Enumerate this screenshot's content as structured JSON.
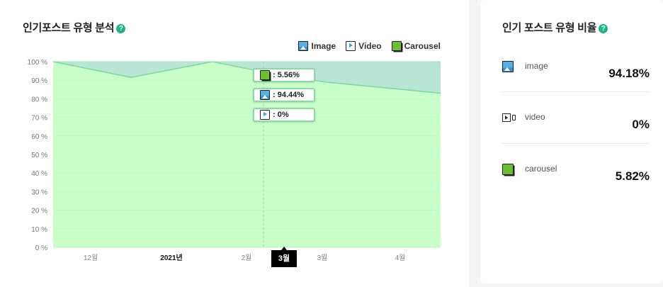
{
  "left_panel": {
    "title": "인기포스트 유형 분석",
    "help_icon": "?",
    "legend": [
      {
        "label": "Image",
        "icon": "image-icon"
      },
      {
        "label": "Video",
        "icon": "video-icon"
      },
      {
        "label": "Carousel",
        "icon": "carousel-icon"
      }
    ],
    "tooltip": [
      {
        "icon": "carousel-icon",
        "text": ": 5.56%"
      },
      {
        "icon": "image-icon",
        "text": ": 94.44%"
      },
      {
        "icon": "video-icon",
        "text": ": 0%"
      }
    ],
    "cursor_label": "3월"
  },
  "chart_data": {
    "type": "area",
    "stacked": true,
    "x": [
      "12월",
      "2021년",
      "2월",
      "3월",
      "3월",
      "4월"
    ],
    "x_ticks": [
      "12월",
      "2021년",
      "2월",
      "3월",
      "4월"
    ],
    "y_ticks": [
      "100 %",
      "90 %",
      "80 %",
      "70 %",
      "60 %",
      "50 %",
      "40 %",
      "30 %",
      "20 %",
      "10 %",
      "0 %"
    ],
    "ylim": [
      0,
      100
    ],
    "series": [
      {
        "name": "Image",
        "color": "#c8ffc8",
        "stroke": "#7dd89a",
        "values": [
          100,
          91.5,
          100,
          94.44,
          89,
          83
        ]
      },
      {
        "name": "Video",
        "values": [
          0,
          0,
          0,
          0,
          0,
          0
        ]
      },
      {
        "name": "Carousel",
        "color": "#b7e5d6",
        "values": [
          0,
          8.5,
          0,
          5.56,
          11,
          17
        ]
      }
    ],
    "grid": true,
    "legend_position": "top-right"
  },
  "right_panel": {
    "title": "인기 포스트 유형 비율",
    "help_icon": "?",
    "stats": [
      {
        "name": "image",
        "value": "94.18%",
        "icon": "image-icon"
      },
      {
        "name": "video",
        "value": "0%",
        "icon": "video-icon"
      },
      {
        "name": "carousel",
        "value": "5.82%",
        "icon": "carousel-icon"
      }
    ]
  }
}
